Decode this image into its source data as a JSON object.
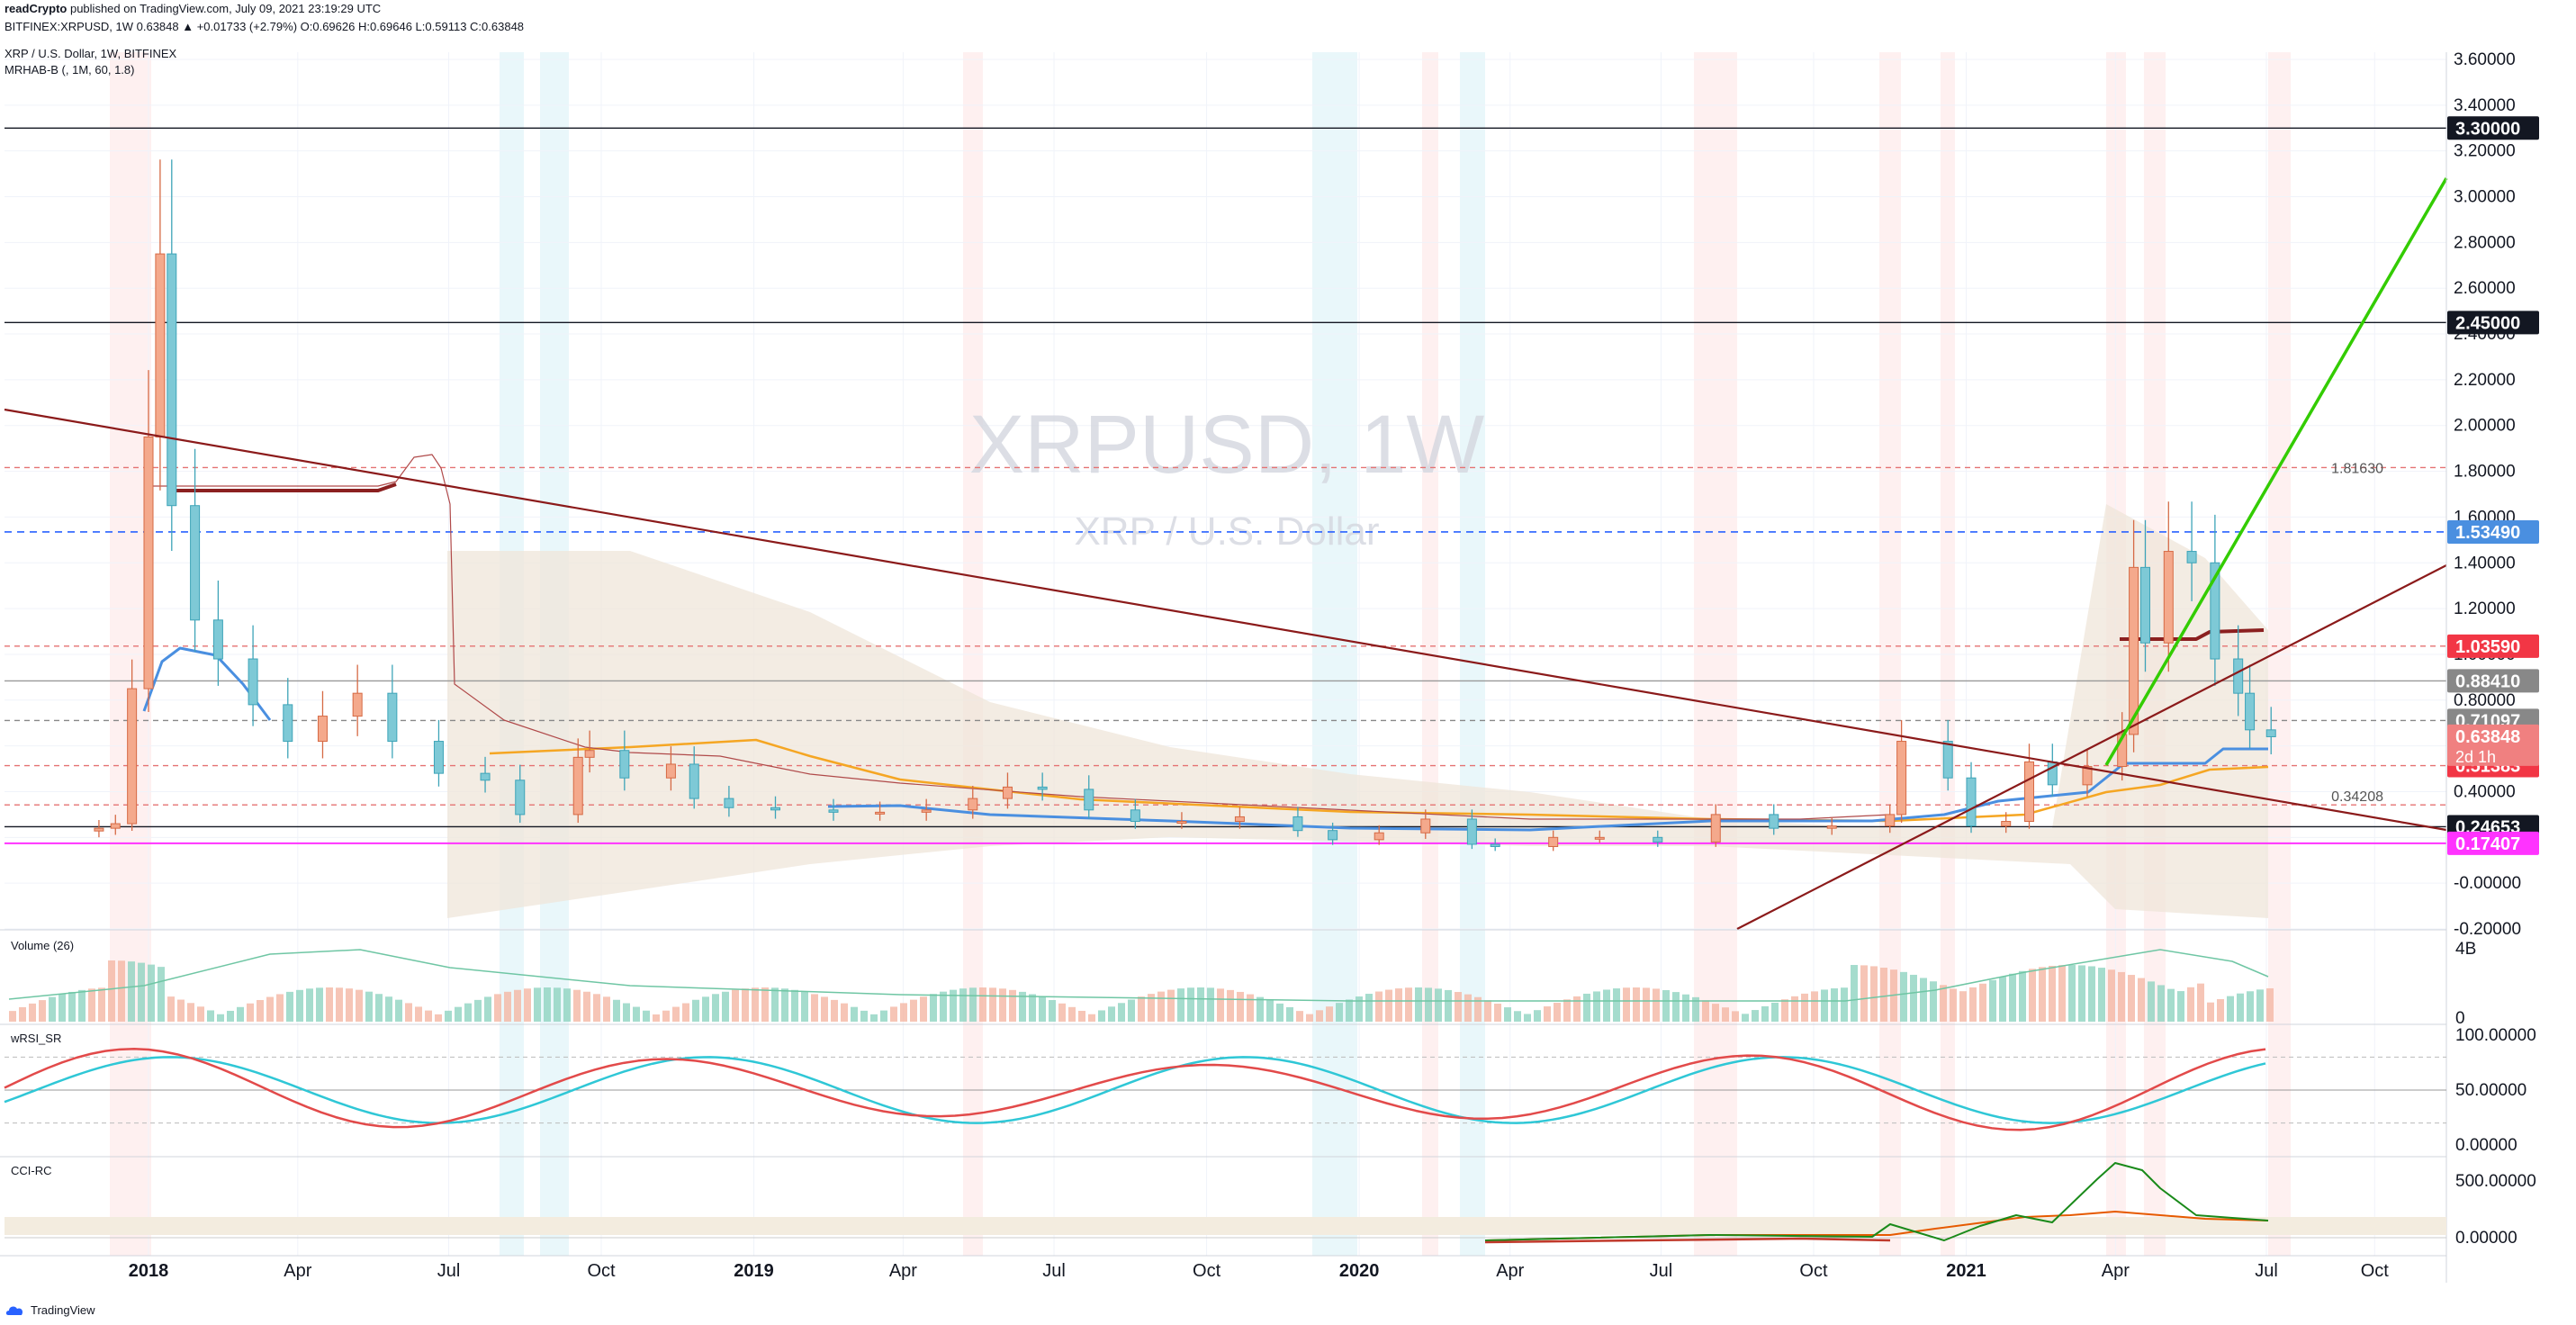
{
  "header": {
    "published_line": "readCrypto published on TradingView.com, July 09, 2021 23:19:29 UTC",
    "published_user": "readCrypto",
    "published_rest": " published on TradingView.com, July 09, 2021 23:19:29 UTC",
    "ohlc_line": "BITFINEX:XRPUSD, 1W 0.63848 ▲ +0.01733 (+2.79%) O:0.69626 H:0.69646 L:0.59113 C:0.63848",
    "symbol_title": "XRP / U.S. Dollar, 1W, BITFINEX",
    "indicator_name": "MRHAB-B (, 1M, 60, 1.8)"
  },
  "footer": {
    "brand": "TradingView",
    "logo_icon": "tradingview-cloud-icon"
  },
  "watermark": {
    "symbol": "XRPUSD, 1W",
    "description": "XRP / U.S. Dollar"
  },
  "colors": {
    "candle_up": "#f4a98c",
    "candle_down": "#7ec9d6",
    "cloud": "#efe6da",
    "trend_red": "#8b1a1a",
    "green_line": "#33cc00",
    "magenta": "#ff33ff",
    "blue_dash": "#2962ff",
    "red_dash": "#ef5350",
    "blue_ma": "#4a8fe0",
    "orange_ma": "#f5a623",
    "axis_text": "#131722"
  },
  "chart_data": [
    {
      "name": "price",
      "type": "candlestick",
      "title": "XRP / U.S. Dollar, 1W, BITFINEX",
      "y_scale": "linear",
      "ylim": [
        -0.2,
        3.7
      ],
      "y_ticks": [
        "3.60000",
        "3.40000",
        "3.20000",
        "3.00000",
        "2.80000",
        "2.60000",
        "2.40000",
        "2.20000",
        "2.00000",
        "1.80000",
        "1.60000",
        "1.40000",
        "1.20000",
        "1.00000",
        "0.80000",
        "0.60000",
        "0.40000",
        "0.20000",
        "-0.00000",
        "-0.20000"
      ],
      "x_ticks": [
        "2018",
        "Apr",
        "Jul",
        "Oct",
        "2019",
        "Apr",
        "Jul",
        "Oct",
        "2020",
        "Apr",
        "Jul",
        "Oct",
        "2021",
        "Apr",
        "Jul",
        "Oct"
      ],
      "horizontal_levels": [
        {
          "value": 3.3,
          "label": "3.30000",
          "style": "solid-black"
        },
        {
          "value": 2.45,
          "label": "2.45000",
          "style": "solid-black"
        },
        {
          "value": 1.8163,
          "label": "1.81630",
          "style": "dashed-red"
        },
        {
          "value": 1.5349,
          "label": "1.53490",
          "style": "dashed-blue"
        },
        {
          "value": 1.0359,
          "label": "1.03590",
          "style": "dashed-red"
        },
        {
          "value": 0.8841,
          "label": "0.88410",
          "style": "solid-gray"
        },
        {
          "value": 0.71097,
          "label": "0.71097",
          "style": "dashed-gray"
        },
        {
          "value": 0.63848,
          "label": "0.63848",
          "style": "last-price"
        },
        {
          "value": 0.51383,
          "label": "0.51383",
          "style": "dashed-red"
        },
        {
          "value": 0.34208,
          "label": "0.34208",
          "style": "dashed-red"
        },
        {
          "value": 0.24653,
          "label": "0.24653",
          "style": "solid-black"
        },
        {
          "value": 0.17407,
          "label": "0.17407",
          "style": "magenta"
        }
      ],
      "last_price": {
        "value": 0.63848,
        "countdown": "2d 1h"
      },
      "level_text_labels": [
        "1.81630",
        "0.34208"
      ],
      "series": [
        {
          "name": "XRPUSD weekly close",
          "x": [
            "2017-11-20",
            "2017-12-04",
            "2017-12-18",
            "2018-01-01",
            "2018-01-08",
            "2018-01-15",
            "2018-01-29",
            "2018-02-12",
            "2018-03-05",
            "2018-03-26",
            "2018-04-16",
            "2018-05-07",
            "2018-05-28",
            "2018-06-25",
            "2018-07-23",
            "2018-08-13",
            "2018-09-17",
            "2018-09-24",
            "2018-10-15",
            "2018-11-12",
            "2018-11-26",
            "2018-12-17",
            "2019-01-14",
            "2019-02-18",
            "2019-03-18",
            "2019-04-15",
            "2019-05-13",
            "2019-06-03",
            "2019-06-24",
            "2019-07-22",
            "2019-08-19",
            "2019-09-16",
            "2019-10-21",
            "2019-11-25",
            "2019-12-16",
            "2020-01-13",
            "2020-02-10",
            "2020-03-09",
            "2020-03-23",
            "2020-04-27",
            "2020-05-25",
            "2020-06-29",
            "2020-08-03",
            "2020-09-07",
            "2020-10-12",
            "2020-11-16",
            "2020-11-23",
            "2020-12-21",
            "2021-01-04",
            "2021-01-25",
            "2021-02-08",
            "2021-02-22",
            "2021-03-15",
            "2021-04-05",
            "2021-04-12",
            "2021-04-19",
            "2021-05-03",
            "2021-05-17",
            "2021-05-31",
            "2021-06-14",
            "2021-06-21",
            "2021-07-05"
          ],
          "y": [
            0.24,
            0.26,
            0.85,
            1.95,
            2.75,
            1.65,
            1.15,
            0.98,
            0.78,
            0.62,
            0.73,
            0.83,
            0.62,
            0.48,
            0.45,
            0.3,
            0.55,
            0.58,
            0.46,
            0.52,
            0.37,
            0.33,
            0.32,
            0.31,
            0.31,
            0.32,
            0.37,
            0.42,
            0.41,
            0.32,
            0.27,
            0.27,
            0.29,
            0.23,
            0.19,
            0.22,
            0.28,
            0.17,
            0.16,
            0.2,
            0.2,
            0.18,
            0.3,
            0.24,
            0.25,
            0.3,
            0.62,
            0.46,
            0.25,
            0.27,
            0.53,
            0.43,
            0.51,
            0.65,
            1.38,
            1.05,
            1.45,
            1.4,
            0.98,
            0.83,
            0.67,
            0.64
          ]
        }
      ],
      "annotations": [
        "green rising trendline",
        "red descending trendline",
        "red ascending trendline",
        "magenta support 0.17407"
      ]
    },
    {
      "name": "volume",
      "type": "bar",
      "title": "Volume (26)",
      "y_ticks": [
        "4B",
        "0"
      ]
    },
    {
      "name": "wRSI_SR",
      "type": "line",
      "title": "wRSI_SR",
      "ylim": [
        0,
        100
      ],
      "y_ticks": [
        "100.00000",
        "50.00000",
        "0.00000"
      ]
    },
    {
      "name": "CCI-RC",
      "type": "line",
      "title": "CCI-RC",
      "y_ticks": [
        "500.00000",
        "0.00000"
      ]
    }
  ]
}
